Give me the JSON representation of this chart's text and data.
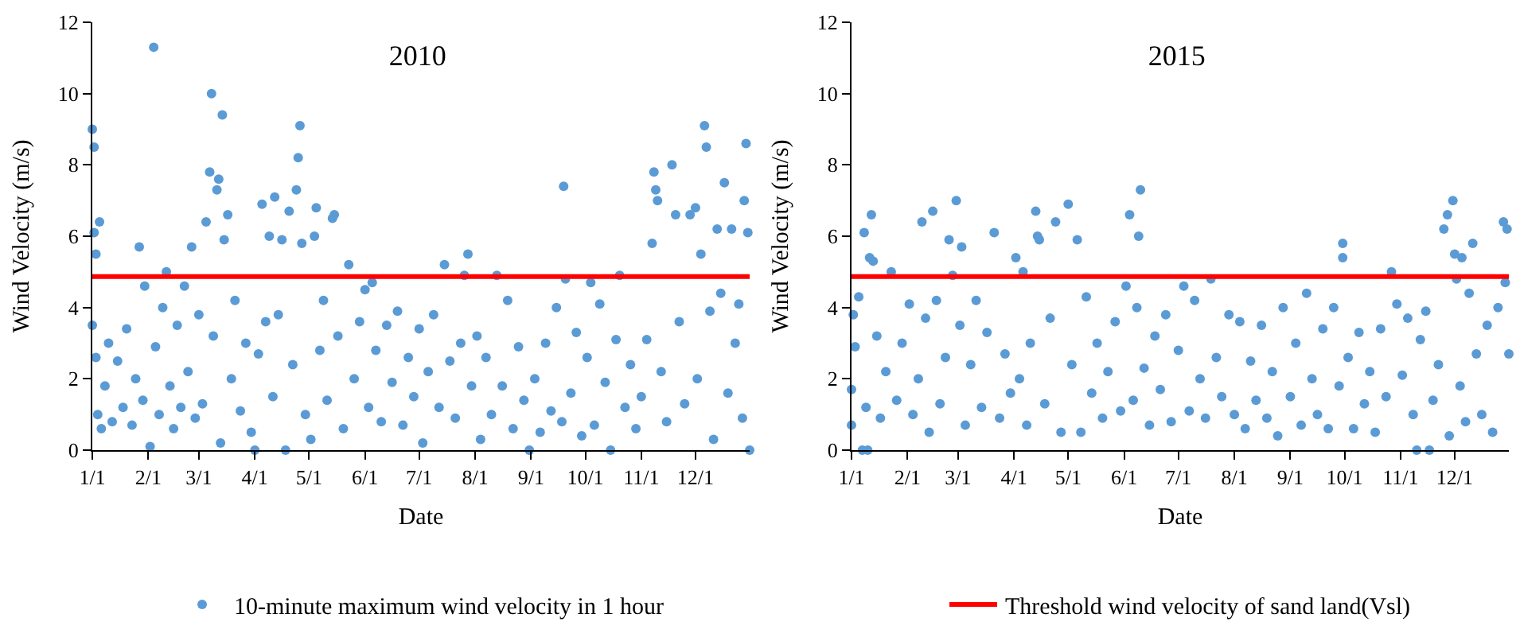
{
  "chart_data": [
    {
      "type": "scatter",
      "title": "2010",
      "xlabel": "Date",
      "ylabel": "Wind Velocity (m/s)",
      "grid": false,
      "legend": "bottom",
      "xlim": [
        "--01-01",
        "--12-31"
      ],
      "xticks": [
        {
          "value": "--01-01",
          "label": "1/1"
        },
        {
          "value": "--02-01",
          "label": "2/1"
        },
        {
          "value": "--03-01",
          "label": "3/1"
        },
        {
          "value": "--04-01",
          "label": "4/1"
        },
        {
          "value": "--05-01",
          "label": "5/1"
        },
        {
          "value": "--06-01",
          "label": "6/1"
        },
        {
          "value": "--07-01",
          "label": "7/1"
        },
        {
          "value": "--08-01",
          "label": "8/1"
        },
        {
          "value": "--09-01",
          "label": "9/1"
        },
        {
          "value": "--10-01",
          "label": "10/1"
        },
        {
          "value": "--11-01",
          "label": "11/1"
        },
        {
          "value": "--12-01",
          "label": "12/1"
        }
      ],
      "ylim": [
        0,
        12
      ],
      "yticks": [
        0,
        2,
        4,
        6,
        8,
        10,
        12
      ],
      "series": [
        {
          "name": "10-minute maximum wind velocity in 1 hour",
          "marker": "circle",
          "color": "#5b9bd5",
          "x": [
            "--01-01",
            "--01-02",
            "--01-02",
            "--01-03",
            "--01-05",
            "--01-01",
            "--01-03",
            "--01-04",
            "--01-06",
            "--01-08",
            "--01-10",
            "--01-12",
            "--01-15",
            "--01-18",
            "--01-20",
            "--01-23",
            "--01-25",
            "--01-27",
            "--01-29",
            "--01-30",
            "--02-02",
            "--02-04",
            "--02-05",
            "--02-07",
            "--02-09",
            "--02-11",
            "--02-13",
            "--02-15",
            "--02-17",
            "--02-19",
            "--02-21",
            "--02-23",
            "--02-25",
            "--02-27",
            "--03-01",
            "--03-03",
            "--03-05",
            "--03-07",
            "--03-08",
            "--03-09",
            "--03-11",
            "--03-12",
            "--03-13",
            "--03-14",
            "--03-15",
            "--03-17",
            "--03-19",
            "--03-21",
            "--03-24",
            "--03-27",
            "--03-30",
            "--04-01",
            "--04-03",
            "--04-05",
            "--04-07",
            "--04-09",
            "--04-11",
            "--04-12",
            "--04-14",
            "--04-16",
            "--04-18",
            "--04-20",
            "--04-22",
            "--04-24",
            "--04-25",
            "--04-26",
            "--04-27",
            "--04-29",
            "--05-02",
            "--05-04",
            "--05-05",
            "--05-07",
            "--05-09",
            "--05-11",
            "--05-14",
            "--05-15",
            "--05-17",
            "--05-20",
            "--05-23",
            "--05-26",
            "--05-29",
            "--06-01",
            "--06-03",
            "--06-05",
            "--06-07",
            "--06-10",
            "--06-13",
            "--06-16",
            "--06-19",
            "--06-22",
            "--06-25",
            "--06-28",
            "--07-01",
            "--07-03",
            "--07-06",
            "--07-09",
            "--07-12",
            "--07-15",
            "--07-18",
            "--07-21",
            "--07-24",
            "--07-26",
            "--07-28",
            "--07-30",
            "--08-02",
            "--08-04",
            "--08-07",
            "--08-10",
            "--08-13",
            "--08-16",
            "--08-19",
            "--08-22",
            "--08-25",
            "--08-28",
            "--08-31",
            "--09-03",
            "--09-06",
            "--09-09",
            "--09-12",
            "--09-15",
            "--09-18",
            "--09-19",
            "--09-20",
            "--09-23",
            "--09-26",
            "--09-29",
            "--10-02",
            "--10-04",
            "--10-06",
            "--10-09",
            "--10-12",
            "--10-15",
            "--10-18",
            "--10-20",
            "--10-23",
            "--10-26",
            "--10-29",
            "--11-01",
            "--11-04",
            "--11-07",
            "--11-08",
            "--11-09",
            "--11-10",
            "--11-12",
            "--11-15",
            "--11-18",
            "--11-20",
            "--11-22",
            "--11-25",
            "--11-28",
            "--12-01",
            "--12-02",
            "--12-04",
            "--12-06",
            "--12-07",
            "--12-09",
            "--12-11",
            "--12-13",
            "--12-15",
            "--12-17",
            "--12-19",
            "--12-21",
            "--12-23",
            "--12-25",
            "--12-27",
            "--12-28",
            "--12-29",
            "--12-30",
            "--12-31"
          ],
          "values": [
            9.0,
            8.5,
            6.1,
            5.5,
            6.4,
            3.5,
            2.6,
            1.0,
            0.6,
            1.8,
            3.0,
            0.8,
            2.5,
            1.2,
            3.4,
            0.7,
            2.0,
            5.7,
            1.4,
            4.6,
            0.1,
            11.3,
            2.9,
            1.0,
            4.0,
            5.0,
            1.8,
            0.6,
            3.5,
            1.2,
            4.6,
            2.2,
            5.7,
            0.9,
            3.8,
            1.3,
            6.4,
            7.8,
            10.0,
            3.2,
            7.3,
            7.6,
            0.2,
            9.4,
            5.9,
            6.6,
            2.0,
            4.2,
            1.1,
            3.0,
            0.5,
            0.0,
            2.7,
            6.9,
            3.6,
            6.0,
            1.5,
            7.1,
            3.8,
            5.9,
            0.0,
            6.7,
            2.4,
            7.3,
            8.2,
            9.1,
            5.8,
            1.0,
            0.3,
            6.0,
            6.8,
            2.8,
            4.2,
            1.4,
            6.5,
            6.6,
            3.2,
            0.6,
            5.2,
            2.0,
            3.6,
            4.5,
            1.2,
            4.7,
            2.8,
            0.8,
            3.5,
            1.9,
            3.9,
            0.7,
            2.6,
            1.5,
            3.4,
            0.2,
            2.2,
            3.8,
            1.2,
            5.2,
            2.5,
            0.9,
            3.0,
            4.9,
            5.5,
            1.8,
            3.2,
            0.3,
            2.6,
            1.0,
            4.9,
            1.8,
            4.2,
            0.6,
            2.9,
            1.4,
            0.0,
            2.0,
            0.5,
            3.0,
            1.1,
            4.0,
            0.8,
            7.4,
            4.8,
            1.6,
            3.3,
            0.4,
            2.6,
            4.7,
            0.7,
            4.1,
            1.9,
            0.0,
            3.1,
            4.9,
            1.2,
            2.4,
            0.6,
            1.5,
            3.1,
            5.8,
            7.8,
            7.3,
            7.0,
            2.2,
            0.8,
            8.0,
            6.6,
            3.6,
            1.3,
            6.6,
            6.8,
            2.0,
            5.5,
            9.1,
            8.5,
            3.9,
            0.3,
            6.2,
            4.4,
            7.5,
            1.6,
            6.2,
            3.0,
            4.1,
            0.9,
            7.0,
            8.6,
            6.1,
            0.0
          ]
        },
        {
          "type": "line",
          "marker": "none",
          "color": "#ff0000",
          "x": [
            "--01-01",
            "--12-31"
          ],
          "values": [
            4.87,
            4.87
          ]
        }
      ]
    },
    {
      "type": "scatter",
      "title": "2015",
      "xlabel": "Date",
      "ylabel": "Wind Velocity (m/s)",
      "grid": false,
      "legend": "bottom",
      "xlim": [
        "--01-01",
        "--12-31"
      ],
      "xticks": [
        {
          "value": "--01-01",
          "label": "1/1"
        },
        {
          "value": "--02-01",
          "label": "2/1"
        },
        {
          "value": "--03-01",
          "label": "3/1"
        },
        {
          "value": "--04-01",
          "label": "4/1"
        },
        {
          "value": "--05-01",
          "label": "5/1"
        },
        {
          "value": "--06-01",
          "label": "6/1"
        },
        {
          "value": "--07-01",
          "label": "7/1"
        },
        {
          "value": "--08-01",
          "label": "8/1"
        },
        {
          "value": "--09-01",
          "label": "9/1"
        },
        {
          "value": "--10-01",
          "label": "10/1"
        },
        {
          "value": "--11-01",
          "label": "11/1"
        },
        {
          "value": "--12-01",
          "label": "12/1"
        }
      ],
      "ylim": [
        0,
        12
      ],
      "yticks": [
        0,
        2,
        4,
        6,
        8,
        10,
        12
      ],
      "series": [
        {
          "marker": "circle",
          "color": "#5b9bd5",
          "x": [
            "--01-01",
            "--01-01",
            "--01-02",
            "--01-03",
            "--01-05",
            "--01-07",
            "--01-08",
            "--01-09",
            "--01-10",
            "--01-11",
            "--01-12",
            "--01-13",
            "--01-15",
            "--01-17",
            "--01-20",
            "--01-23",
            "--01-26",
            "--01-29",
            "--02-02",
            "--02-04",
            "--02-07",
            "--02-09",
            "--02-11",
            "--02-13",
            "--02-15",
            "--02-17",
            "--02-19",
            "--02-22",
            "--02-24",
            "--02-26",
            "--02-28",
            "--03-02",
            "--03-03",
            "--03-05",
            "--03-08",
            "--03-11",
            "--03-14",
            "--03-17",
            "--03-21",
            "--03-24",
            "--03-27",
            "--03-30",
            "--04-02",
            "--04-04",
            "--04-06",
            "--04-08",
            "--04-10",
            "--04-13",
            "--04-14",
            "--04-15",
            "--04-18",
            "--04-21",
            "--04-24",
            "--04-27",
            "--05-01",
            "--05-03",
            "--05-06",
            "--05-08",
            "--05-11",
            "--05-14",
            "--05-17",
            "--05-20",
            "--05-23",
            "--05-27",
            "--05-30",
            "--06-02",
            "--06-04",
            "--06-06",
            "--06-08",
            "--06-09",
            "--06-10",
            "--06-12",
            "--06-15",
            "--06-18",
            "--06-21",
            "--06-24",
            "--06-27",
            "--07-01",
            "--07-04",
            "--07-07",
            "--07-10",
            "--07-13",
            "--07-16",
            "--07-19",
            "--07-22",
            "--07-25",
            "--07-29",
            "--08-01",
            "--08-04",
            "--08-07",
            "--08-10",
            "--08-13",
            "--08-16",
            "--08-19",
            "--08-22",
            "--08-25",
            "--08-28",
            "--09-01",
            "--09-04",
            "--09-07",
            "--09-10",
            "--09-13",
            "--09-16",
            "--09-19",
            "--09-22",
            "--09-25",
            "--09-28",
            "--09-30",
            "--09-30",
            "--10-03",
            "--10-06",
            "--10-09",
            "--10-12",
            "--10-15",
            "--10-18",
            "--10-21",
            "--10-24",
            "--10-27",
            "--10-30",
            "--11-02",
            "--11-05",
            "--11-08",
            "--11-10",
            "--11-12",
            "--11-15",
            "--11-17",
            "--11-19",
            "--11-22",
            "--11-25",
            "--11-27",
            "--11-28",
            "--11-30",
            "--12-01",
            "--12-02",
            "--12-04",
            "--12-05",
            "--12-07",
            "--12-09",
            "--12-11",
            "--12-13",
            "--12-16",
            "--12-19",
            "--12-22",
            "--12-25",
            "--12-28",
            "--12-29",
            "--12-30",
            "--12-31"
          ],
          "values": [
            1.7,
            0.7,
            3.8,
            2.9,
            4.3,
            0.0,
            6.1,
            1.2,
            0.0,
            5.4,
            6.6,
            5.3,
            3.2,
            0.9,
            2.2,
            5.0,
            1.4,
            3.0,
            4.1,
            1.0,
            2.0,
            6.4,
            3.7,
            0.5,
            6.7,
            4.2,
            1.3,
            2.6,
            5.9,
            4.9,
            7.0,
            3.5,
            5.7,
            0.7,
            2.4,
            4.2,
            1.2,
            3.3,
            6.1,
            0.9,
            2.7,
            1.6,
            5.4,
            2.0,
            5.0,
            0.7,
            3.0,
            6.7,
            6.0,
            5.9,
            1.3,
            3.7,
            6.4,
            0.5,
            6.9,
            2.4,
            5.9,
            0.5,
            4.3,
            1.6,
            3.0,
            0.9,
            2.2,
            3.6,
            1.1,
            4.6,
            6.6,
            1.4,
            4.0,
            6.0,
            7.3,
            2.3,
            0.7,
            3.2,
            1.7,
            3.8,
            0.8,
            2.8,
            4.6,
            1.1,
            4.2,
            2.0,
            0.9,
            4.8,
            2.6,
            1.5,
            3.8,
            1.0,
            3.6,
            0.6,
            2.5,
            1.4,
            3.5,
            0.9,
            2.2,
            0.4,
            4.0,
            1.5,
            3.0,
            0.7,
            4.4,
            2.0,
            1.0,
            3.4,
            0.6,
            4.0,
            1.8,
            5.8,
            5.4,
            2.6,
            0.6,
            3.3,
            1.3,
            2.2,
            0.5,
            3.4,
            1.5,
            5.0,
            4.1,
            2.1,
            3.7,
            1.0,
            0.0,
            3.1,
            3.9,
            0.0,
            1.4,
            2.4,
            6.2,
            6.6,
            0.4,
            7.0,
            5.5,
            4.8,
            1.8,
            5.4,
            0.8,
            4.4,
            5.8,
            2.7,
            1.0,
            3.5,
            0.5,
            4.0,
            6.4,
            4.7,
            6.2,
            2.7
          ]
        },
        {
          "type": "line",
          "name": "Threshold wind velocity of sand land(Vsl)",
          "marker": "none",
          "color": "#ff0000",
          "x": [
            "--01-01",
            "--12-31"
          ],
          "values": [
            4.87,
            4.87
          ]
        }
      ]
    }
  ]
}
